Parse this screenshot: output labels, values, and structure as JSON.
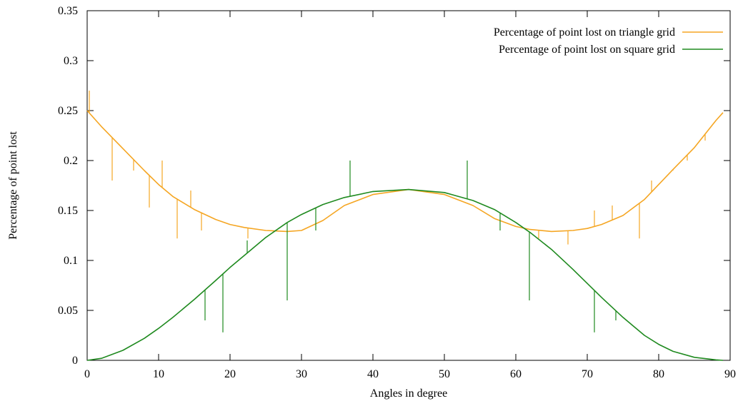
{
  "chart_data": {
    "type": "line",
    "title": "",
    "xlabel": "Angles in degree",
    "ylabel": "Percentage of point lost",
    "xlim": [
      0,
      90
    ],
    "ylim": [
      0,
      0.35
    ],
    "x_ticks": [
      0,
      10,
      20,
      30,
      40,
      50,
      60,
      70,
      80,
      90
    ],
    "x_tick_labels": [
      "0",
      "10",
      "20",
      "30",
      "40",
      "50",
      "60",
      "70",
      "80",
      "90"
    ],
    "y_ticks": [
      0,
      0.05,
      0.1,
      0.15,
      0.2,
      0.25,
      0.3,
      0.35
    ],
    "y_tick_labels": [
      "0",
      "0.05",
      "0.1",
      "0.15",
      "0.2",
      "0.25",
      "0.3",
      "0.35"
    ],
    "grid": false,
    "legend_position": "top-right",
    "series": [
      {
        "name": "Percentage of point lost on triangle grid",
        "color": "#f5a623",
        "x": [
          0,
          2,
          5,
          8,
          10,
          12,
          15,
          18,
          20,
          22,
          25,
          28,
          30,
          33,
          36,
          40,
          45,
          50,
          54,
          57,
          60,
          62,
          65,
          68,
          70,
          72,
          75,
          78,
          80,
          82,
          85,
          88,
          89
        ],
        "y": [
          0.25,
          0.234,
          0.212,
          0.19,
          0.176,
          0.164,
          0.151,
          0.141,
          0.136,
          0.133,
          0.13,
          0.129,
          0.13,
          0.14,
          0.155,
          0.166,
          0.171,
          0.166,
          0.155,
          0.142,
          0.134,
          0.131,
          0.129,
          0.13,
          0.132,
          0.136,
          0.145,
          0.161,
          0.176,
          0.191,
          0.213,
          0.24,
          0.248
        ],
        "spikes": [
          {
            "x": 0.3,
            "y": 0.27
          },
          {
            "x": 3.5,
            "y": 0.18
          },
          {
            "x": 6.5,
            "y": 0.19
          },
          {
            "x": 8.7,
            "y": 0.153
          },
          {
            "x": 10.5,
            "y": 0.2
          },
          {
            "x": 12.6,
            "y": 0.122
          },
          {
            "x": 14.5,
            "y": 0.17
          },
          {
            "x": 16.0,
            "y": 0.13
          },
          {
            "x": 22.5,
            "y": 0.122
          },
          {
            "x": 63.2,
            "y": 0.122
          },
          {
            "x": 67.3,
            "y": 0.116
          },
          {
            "x": 71.0,
            "y": 0.15
          },
          {
            "x": 73.5,
            "y": 0.155
          },
          {
            "x": 77.3,
            "y": 0.122
          },
          {
            "x": 79.0,
            "y": 0.18
          },
          {
            "x": 82.0,
            "y": 0.19
          },
          {
            "x": 84.0,
            "y": 0.2
          },
          {
            "x": 86.5,
            "y": 0.22
          }
        ]
      },
      {
        "name": "Percentage of point lost on square grid",
        "color": "#1f8a1f",
        "x": [
          0,
          2,
          5,
          8,
          10,
          12,
          15,
          18,
          20,
          22,
          25,
          28,
          30,
          33,
          36,
          40,
          45,
          50,
          54,
          57,
          60,
          62,
          65,
          68,
          70,
          72,
          75,
          78,
          80,
          82,
          85,
          88,
          89
        ],
        "y": [
          0,
          0.002,
          0.01,
          0.022,
          0.032,
          0.043,
          0.061,
          0.08,
          0.093,
          0.105,
          0.123,
          0.138,
          0.146,
          0.156,
          0.163,
          0.169,
          0.171,
          0.168,
          0.16,
          0.151,
          0.138,
          0.128,
          0.111,
          0.091,
          0.077,
          0.063,
          0.043,
          0.025,
          0.016,
          0.009,
          0.003,
          0.0005,
          0
        ],
        "spikes": [
          {
            "x": 19.0,
            "y": 0.028
          },
          {
            "x": 22.4,
            "y": 0.12
          },
          {
            "x": 28.0,
            "y": 0.06
          },
          {
            "x": 32.0,
            "y": 0.13
          },
          {
            "x": 36.8,
            "y": 0.2
          },
          {
            "x": 53.2,
            "y": 0.2
          },
          {
            "x": 57.8,
            "y": 0.13
          },
          {
            "x": 61.9,
            "y": 0.06
          },
          {
            "x": 71.0,
            "y": 0.028
          },
          {
            "x": 74.0,
            "y": 0.04
          },
          {
            "x": 16.5,
            "y": 0.04
          }
        ]
      }
    ]
  }
}
